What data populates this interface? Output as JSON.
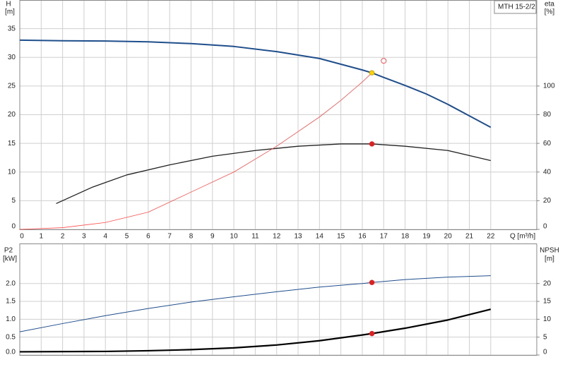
{
  "chart_data": [
    {
      "type": "line",
      "title": "MTH 15-2/2",
      "xlabel": "Q [m³/h]",
      "ylabel": "H",
      "yunit": "[m]",
      "y2label": "eta",
      "y2unit": "[%]",
      "xlim": [
        0,
        24.15
      ],
      "xticks": [
        0,
        1,
        2,
        3,
        4,
        5,
        6,
        7,
        8,
        9,
        10,
        11,
        12,
        13,
        14,
        15,
        16,
        17,
        18,
        19,
        20,
        21,
        22
      ],
      "ylim": [
        0,
        40
      ],
      "yticks": [
        0,
        5,
        10,
        15,
        20,
        25,
        30,
        35
      ],
      "y2lim": [
        0,
        160
      ],
      "y2ticks": [
        0,
        20,
        40,
        60,
        80,
        100
      ],
      "grid": true,
      "series": [
        {
          "color": "#1f4e8c",
          "line_width": 2,
          "axis": "y",
          "x": [
            0,
            2,
            4,
            6,
            8,
            10,
            12,
            14,
            15,
            16,
            16.45,
            17,
            18,
            19,
            20,
            21,
            22
          ],
          "values": [
            33,
            32.9,
            32.85,
            32.7,
            32.4,
            31.9,
            31.0,
            29.8,
            28.8,
            27.8,
            27.3,
            26.5,
            25.1,
            23.6,
            21.8,
            19.8,
            17.8
          ]
        },
        {
          "color": "#222222",
          "line_width": 1.3,
          "axis": "y2",
          "x": [
            1.7,
            3.4,
            5,
            7,
            9,
            11,
            13,
            15,
            16.45,
            18,
            20,
            22
          ],
          "values": [
            18,
            29.5,
            38,
            45,
            51,
            55,
            58,
            59.6,
            59.6,
            58,
            55,
            48
          ]
        },
        {
          "color": "#ff4d4d",
          "line_width": 0.8,
          "axis": "y",
          "x": [
            0,
            2,
            4,
            6,
            8,
            10,
            12,
            14,
            15,
            16,
            16.45
          ],
          "values": [
            0,
            0.3,
            1.2,
            3,
            6.5,
            10,
            14.5,
            19.6,
            22.5,
            25.7,
            27.3
          ]
        }
      ],
      "points": [
        {
          "x": 16.45,
          "y": 27.3,
          "color": "#ffd400",
          "axis": "y",
          "hollow": false
        },
        {
          "x": 17,
          "y": 29.4,
          "color": "#ff4d4d",
          "axis": "y",
          "hollow": true
        },
        {
          "x": 16.45,
          "y": 59.6,
          "color": "#e02020",
          "axis": "y2",
          "hollow": false
        }
      ]
    },
    {
      "type": "line",
      "ylabel": "P2",
      "yunit": "[kW]",
      "y2label": "NPSH",
      "y2unit": "[m]",
      "xlim": [
        0,
        24.15
      ],
      "ylim": [
        0,
        3.12
      ],
      "yticks": [
        {
          "value": 0,
          "label": "0.0"
        },
        0.5,
        {
          "value": 1,
          "label": "1.0"
        },
        1.5,
        {
          "value": 2,
          "label": "2.0"
        }
      ],
      "y2lim": [
        0,
        31.2
      ],
      "y2ticks": [
        0,
        5,
        10,
        15,
        20
      ],
      "grid": true,
      "series": [
        {
          "color": "#1f4e8c",
          "line_width": 1,
          "axis": "y",
          "x": [
            0,
            2,
            4,
            6,
            8,
            10,
            12,
            14,
            16,
            16.45,
            18,
            20,
            22
          ],
          "values": [
            0.65,
            0.88,
            1.1,
            1.3,
            1.48,
            1.63,
            1.77,
            1.9,
            2.0,
            2.03,
            2.11,
            2.18,
            2.22
          ]
        },
        {
          "color": "#000000",
          "line_width": 2.2,
          "axis": "y2",
          "x": [
            0,
            4,
            6,
            8,
            10,
            12,
            14,
            16,
            16.45,
            18,
            20,
            22
          ],
          "values": [
            0.9,
            1,
            1.2,
            1.5,
            2,
            2.8,
            4,
            5.6,
            6,
            7.5,
            9.8,
            12.8
          ]
        }
      ],
      "points": [
        {
          "x": 16.45,
          "y": 2.03,
          "color": "#e02020",
          "axis": "y",
          "hollow": false
        },
        {
          "x": 16.45,
          "y": 6,
          "color": "#e02020",
          "axis": "y2",
          "hollow": false
        }
      ]
    }
  ]
}
